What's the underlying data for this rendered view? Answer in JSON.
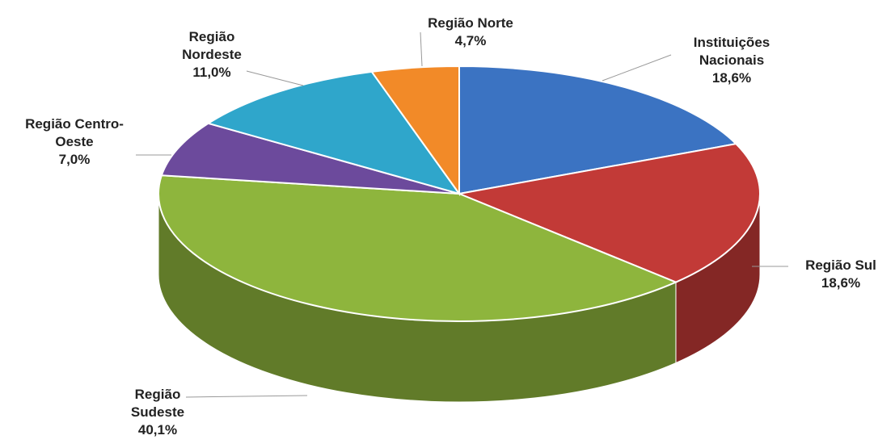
{
  "chart_data": {
    "type": "pie",
    "categories": [
      "Instituições Nacionais",
      "Região Sul",
      "Região Sudeste",
      "Região Centro-Oeste",
      "Região Nordeste",
      "Região Norte"
    ],
    "values": [
      18.6,
      18.6,
      40.1,
      7.0,
      11.0,
      4.7
    ],
    "value_labels": [
      "18,6%",
      "18,6%",
      "40,1%",
      "7,0%",
      "11,0%",
      "4,7%"
    ],
    "colors": [
      "#3b73c2",
      "#c23a37",
      "#8eb53d",
      "#6c4a9c",
      "#2fa6cb",
      "#f28a28"
    ]
  }
}
